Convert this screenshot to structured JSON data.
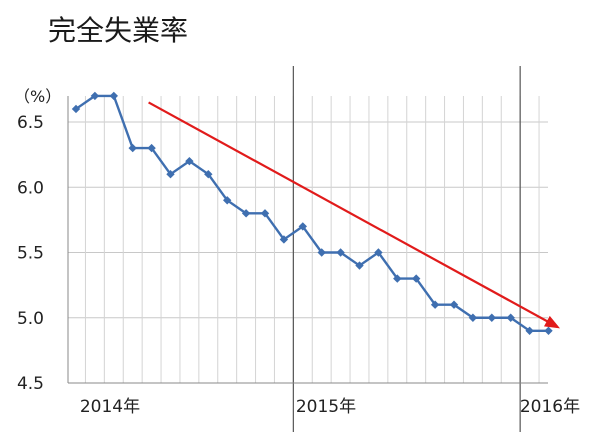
{
  "chart_data": {
    "type": "line",
    "title": "完全失業率",
    "ylabel": "（%）",
    "xlabel": "",
    "ylim": [
      4.5,
      6.5
    ],
    "y_ticks": [
      "6.5",
      "6.0",
      "5.5",
      "5.0",
      "4.5"
    ],
    "x_tick_labels": [
      "2014年",
      "2015年",
      "2016年"
    ],
    "grid": true,
    "legend": "none",
    "series": [
      {
        "color": "#3f6fb0",
        "marker": "diamond",
        "values": [
          6.6,
          6.7,
          6.7,
          6.3,
          6.3,
          6.1,
          6.2,
          6.1,
          5.9,
          5.8,
          5.8,
          5.6,
          5.7,
          5.5,
          5.5,
          5.4,
          5.5,
          5.3,
          5.3,
          5.1,
          5.1,
          5.0,
          5.0,
          5.0,
          4.9,
          4.9
        ]
      }
    ],
    "trend_arrow": {
      "color": "#e11b1b",
      "from": [
        4,
        6.65
      ],
      "to": [
        26,
        4.93
      ]
    },
    "year_dividers_after_index": [
      11,
      23
    ]
  }
}
